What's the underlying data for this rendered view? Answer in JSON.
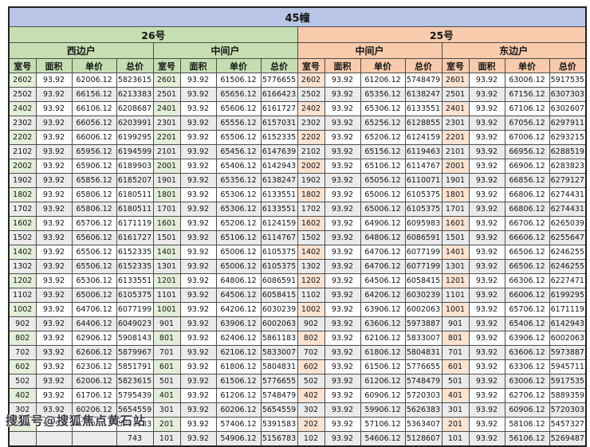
{
  "title": "45幢",
  "watermark": "搜狐号@搜狐焦点黄石站",
  "buildings": [
    {
      "name": "26号",
      "units": [
        "西边户",
        "中间户"
      ]
    },
    {
      "name": "25号",
      "units": [
        "中间户",
        "东边户"
      ]
    }
  ],
  "column_headers": [
    "室号",
    "面积",
    "单价",
    "总价"
  ],
  "colors": {
    "title_bg": "#b8c5e6",
    "green": "#c5dfb2",
    "green_light": "#e3efd9",
    "orange": "#f7cbac",
    "orange_light": "#fbe3d2",
    "row_alt": "#ebebeb"
  },
  "chart_data": {
    "type": "table",
    "title": "45幢",
    "groups": [
      {
        "building": "26号",
        "unit": "西边户",
        "theme": "green",
        "rows": [
          [
            "2602",
            "93.92",
            "62006.12",
            "5823615"
          ],
          [
            "2502",
            "93.92",
            "66156.12",
            "6213383"
          ],
          [
            "2402",
            "93.92",
            "66106.12",
            "6208687"
          ],
          [
            "2302",
            "93.92",
            "66056.12",
            "6203991"
          ],
          [
            "2202",
            "93.92",
            "66006.12",
            "6199295"
          ],
          [
            "2102",
            "93.92",
            "65956.12",
            "6194599"
          ],
          [
            "2002",
            "93.92",
            "65906.12",
            "6189903"
          ],
          [
            "1902",
            "93.92",
            "65856.12",
            "6185207"
          ],
          [
            "1802",
            "93.92",
            "65806.12",
            "6180511"
          ],
          [
            "1702",
            "93.92",
            "65806.12",
            "6180511"
          ],
          [
            "1602",
            "93.92",
            "65706.12",
            "6171119"
          ],
          [
            "1502",
            "93.92",
            "65606.12",
            "6161727"
          ],
          [
            "1402",
            "93.92",
            "65506.12",
            "6152335"
          ],
          [
            "1302",
            "93.92",
            "65506.12",
            "6152335"
          ],
          [
            "1202",
            "93.92",
            "65306.12",
            "6133551"
          ],
          [
            "1102",
            "93.92",
            "65006.12",
            "6105375"
          ],
          [
            "1002",
            "93.92",
            "64706.12",
            "6077199"
          ],
          [
            "902",
            "93.92",
            "64406.12",
            "6049023"
          ],
          [
            "802",
            "93.92",
            "62906.12",
            "5908143"
          ],
          [
            "702",
            "93.92",
            "62606.12",
            "5879967"
          ],
          [
            "602",
            "93.92",
            "62306.12",
            "5851791"
          ],
          [
            "502",
            "93.92",
            "62006.12",
            "5823615"
          ],
          [
            "402",
            "93.92",
            "61706.12",
            "5795439"
          ],
          [
            "302",
            "93.92",
            "60206.12",
            "5654559"
          ],
          [
            "202",
            "93.92",
            "57406.12",
            "5391583"
          ],
          [
            "",
            "",
            "",
            "743"
          ]
        ]
      },
      {
        "building": "26号",
        "unit": "中间户",
        "theme": "green",
        "rows": [
          [
            "2601",
            "93.92",
            "61506.12",
            "5776655"
          ],
          [
            "2501",
            "93.92",
            "65656.12",
            "6166423"
          ],
          [
            "2401",
            "93.92",
            "65606.12",
            "6161727"
          ],
          [
            "2301",
            "93.92",
            "65556.12",
            "6157031"
          ],
          [
            "2201",
            "93.92",
            "65506.12",
            "6152335"
          ],
          [
            "2101",
            "93.92",
            "65456.12",
            "6147639"
          ],
          [
            "2001",
            "93.92",
            "65406.12",
            "6142943"
          ],
          [
            "1901",
            "93.92",
            "65356.12",
            "6138247"
          ],
          [
            "1801",
            "93.92",
            "65306.12",
            "6133551"
          ],
          [
            "1701",
            "93.92",
            "65306.12",
            "6133551"
          ],
          [
            "1601",
            "93.92",
            "65206.12",
            "6124159"
          ],
          [
            "1501",
            "93.92",
            "65106.12",
            "6114767"
          ],
          [
            "1401",
            "93.92",
            "65006.12",
            "6105375"
          ],
          [
            "1301",
            "93.92",
            "65006.12",
            "6105375"
          ],
          [
            "1201",
            "93.92",
            "64806.12",
            "6086591"
          ],
          [
            "1101",
            "93.92",
            "64506.12",
            "6058415"
          ],
          [
            "1001",
            "93.92",
            "64206.12",
            "6030239"
          ],
          [
            "901",
            "93.92",
            "63906.12",
            "6002063"
          ],
          [
            "801",
            "93.92",
            "62406.12",
            "5861183"
          ],
          [
            "701",
            "93.92",
            "62106.12",
            "5833007"
          ],
          [
            "601",
            "93.92",
            "61806.12",
            "5804831"
          ],
          [
            "501",
            "93.92",
            "61506.12",
            "5776655"
          ],
          [
            "401",
            "93.92",
            "61206.12",
            "5748479"
          ],
          [
            "301",
            "93.92",
            "60206.12",
            "5654559"
          ],
          [
            "201",
            "93.92",
            "57406.12",
            "5391583"
          ],
          [
            "101",
            "93.92",
            "54906.12",
            "5156783"
          ]
        ]
      },
      {
        "building": "25号",
        "unit": "中间户",
        "theme": "orange",
        "rows": [
          [
            "2602",
            "93.92",
            "61206.12",
            "5748479"
          ],
          [
            "2502",
            "93.92",
            "65356.12",
            "6138247"
          ],
          [
            "2402",
            "93.92",
            "65306.12",
            "6133551"
          ],
          [
            "2302",
            "93.92",
            "65256.12",
            "6128855"
          ],
          [
            "2202",
            "93.92",
            "65206.12",
            "6124159"
          ],
          [
            "2102",
            "93.92",
            "65156.12",
            "6119463"
          ],
          [
            "2002",
            "93.92",
            "65106.12",
            "6114767"
          ],
          [
            "1902",
            "93.92",
            "65056.12",
            "6110071"
          ],
          [
            "1802",
            "93.92",
            "65006.12",
            "6105375"
          ],
          [
            "1702",
            "93.92",
            "65006.12",
            "6105375"
          ],
          [
            "1602",
            "93.92",
            "64906.12",
            "6095983"
          ],
          [
            "1502",
            "93.92",
            "64806.12",
            "6086591"
          ],
          [
            "1402",
            "93.92",
            "64706.12",
            "6077199"
          ],
          [
            "1302",
            "93.92",
            "64706.12",
            "6077199"
          ],
          [
            "1202",
            "93.92",
            "64506.12",
            "6058415"
          ],
          [
            "1102",
            "93.92",
            "64206.12",
            "6030239"
          ],
          [
            "1002",
            "93.92",
            "63906.12",
            "6002063"
          ],
          [
            "902",
            "93.92",
            "63606.12",
            "5973887"
          ],
          [
            "802",
            "93.92",
            "62106.12",
            "5833007"
          ],
          [
            "702",
            "93.92",
            "61806.12",
            "5804831"
          ],
          [
            "602",
            "93.92",
            "61506.12",
            "5776655"
          ],
          [
            "502",
            "93.92",
            "61206.12",
            "5748479"
          ],
          [
            "402",
            "93.92",
            "60906.12",
            "5720303"
          ],
          [
            "302",
            "93.92",
            "59906.12",
            "5626383"
          ],
          [
            "202",
            "93.92",
            "57106.12",
            "5363407"
          ],
          [
            "102",
            "93.92",
            "54606.12",
            "5128607"
          ]
        ]
      },
      {
        "building": "25号",
        "unit": "东边户",
        "theme": "orange",
        "rows": [
          [
            "2601",
            "93.92",
            "63006.12",
            "5917535"
          ],
          [
            "2501",
            "93.92",
            "67156.12",
            "6307303"
          ],
          [
            "2401",
            "93.92",
            "67106.12",
            "6302607"
          ],
          [
            "2301",
            "93.92",
            "67056.12",
            "6297911"
          ],
          [
            "2201",
            "93.92",
            "67006.12",
            "6293215"
          ],
          [
            "2101",
            "93.92",
            "66956.12",
            "6288519"
          ],
          [
            "2001",
            "93.92",
            "66906.12",
            "6283823"
          ],
          [
            "1901",
            "93.92",
            "66856.12",
            "6279127"
          ],
          [
            "1801",
            "93.92",
            "66806.12",
            "6274431"
          ],
          [
            "1701",
            "93.92",
            "66806.12",
            "6274431"
          ],
          [
            "1601",
            "93.92",
            "66706.12",
            "6265039"
          ],
          [
            "1501",
            "93.92",
            "66606.12",
            "6255647"
          ],
          [
            "1401",
            "93.92",
            "66506.12",
            "6246255"
          ],
          [
            "1301",
            "93.92",
            "66506.12",
            "6246255"
          ],
          [
            "1201",
            "93.92",
            "66306.12",
            "6227471"
          ],
          [
            "1101",
            "93.92",
            "66006.12",
            "6199295"
          ],
          [
            "1001",
            "93.92",
            "65706.12",
            "6171119"
          ],
          [
            "901",
            "93.92",
            "65406.12",
            "6142943"
          ],
          [
            "801",
            "93.92",
            "63906.12",
            "6002063"
          ],
          [
            "701",
            "93.92",
            "63606.12",
            "5973887"
          ],
          [
            "601",
            "93.92",
            "63306.12",
            "5945711"
          ],
          [
            "501",
            "93.92",
            "63006.12",
            "5917535"
          ],
          [
            "401",
            "93.92",
            "62706.12",
            "5889359"
          ],
          [
            "301",
            "93.92",
            "60906.12",
            "5720303"
          ],
          [
            "201",
            "93.92",
            "58106.12",
            "5457327"
          ],
          [
            "101",
            "93.92",
            "56106.12",
            "5269487"
          ]
        ]
      }
    ]
  }
}
